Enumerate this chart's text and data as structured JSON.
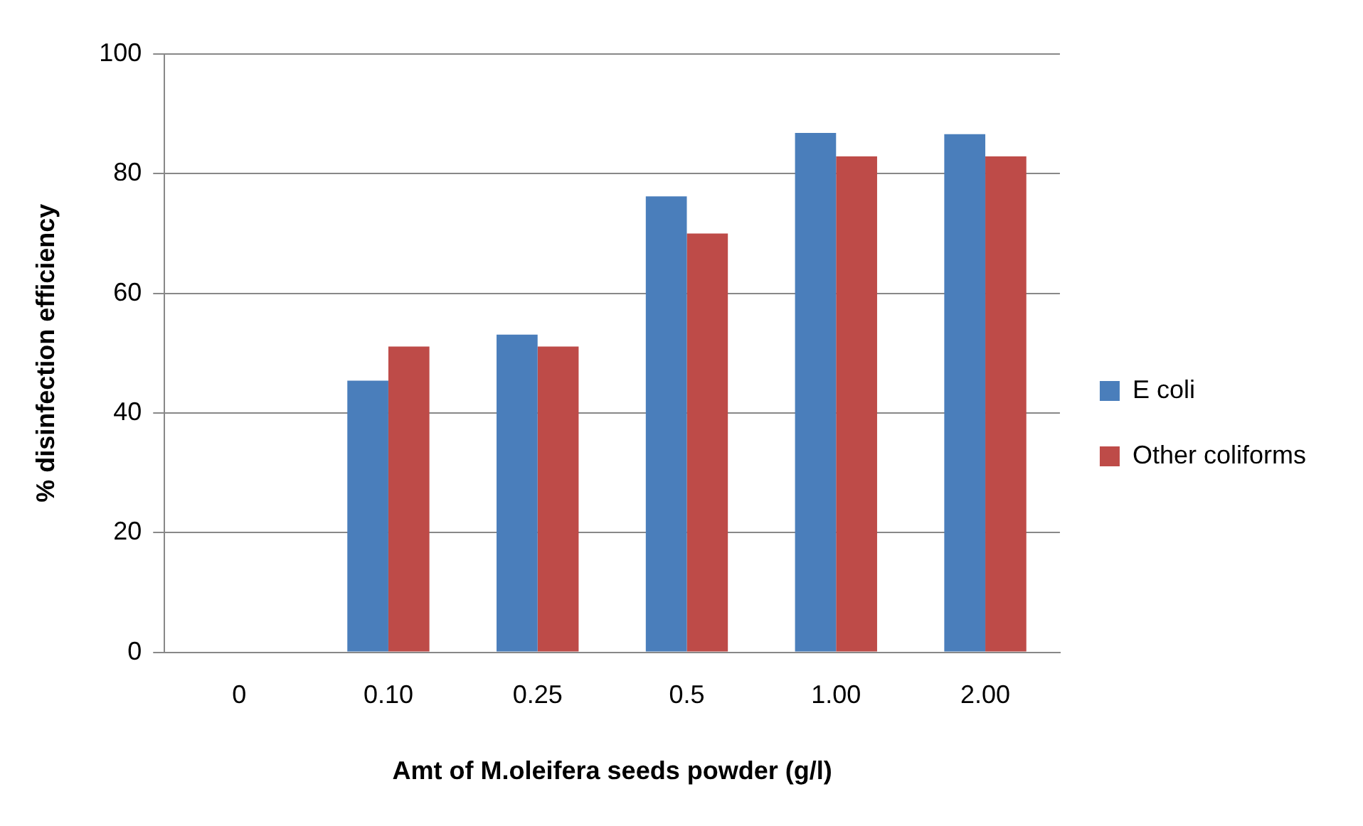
{
  "chart_data": {
    "type": "bar",
    "categories": [
      "0",
      "0.10",
      "0.25",
      "0.5",
      "1.00",
      "2.00"
    ],
    "series": [
      {
        "name": "E coli",
        "color": "#4a7ebb",
        "values": [
          0,
          45.4,
          53.1,
          76.2,
          86.8,
          86.6
        ]
      },
      {
        "name": "Other coliforms",
        "color": "#be4b48",
        "values": [
          0,
          51.1,
          51.1,
          70,
          82.9,
          82.9
        ]
      }
    ],
    "xlabel": "Amt of M.oleifera seeds powder (g/l)",
    "ylabel": "% disinfection efficiency",
    "ylim": [
      0,
      100
    ],
    "yticks": [
      0,
      20,
      40,
      60,
      80,
      100
    ],
    "grid": "y",
    "legend": "right"
  }
}
